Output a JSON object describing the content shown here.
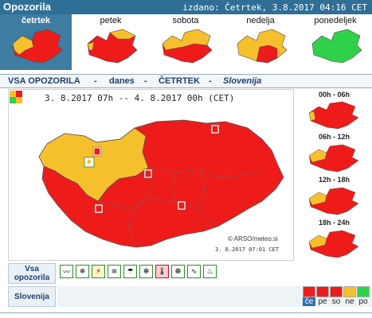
{
  "header": {
    "title": "Opozorila",
    "issued": "izdano: Četrtek, 3.8.2017 04:16 CET"
  },
  "days": [
    {
      "label": "četrtek"
    },
    {
      "label": "petek"
    },
    {
      "label": "sobota"
    },
    {
      "label": "nedelja"
    },
    {
      "label": "ponedeljek"
    }
  ],
  "section": {
    "prefix": "VSA OPOZORILA",
    "sep": "-",
    "today": "danes",
    "day": "ČETRTEK",
    "region": "Slovenija"
  },
  "map": {
    "range": "3. 8.2017 07h  --  4. 8.2017 00h    (CET)",
    "credit": "© ARSO/meteo.si",
    "time": "3. 8.2017  07:01 CET"
  },
  "periods": [
    {
      "label": "00h - 06h"
    },
    {
      "label": "06h - 12h"
    },
    {
      "label": "12h - 18h"
    },
    {
      "label": "18h - 24h"
    }
  ],
  "rows": {
    "all_label": "Vsa opozorila",
    "region_label": "Slovenija"
  },
  "day_abbr": [
    "če",
    "pe",
    "so",
    "ne",
    "po"
  ],
  "colors": {
    "red": "#ee1b1b",
    "orange": "#f6c02c",
    "green": "#2fd14b",
    "header": "#2f6f95"
  }
}
